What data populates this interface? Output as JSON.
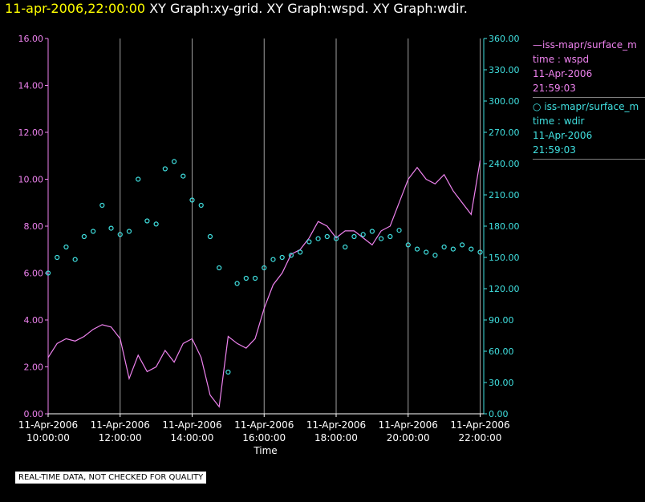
{
  "header": {
    "timestamp": "11-apr-2006,22:00:00",
    "graphs": "XY Graph:xy-grid.  XY Graph:wspd.  XY Graph:wdir."
  },
  "legend": {
    "series1": {
      "name": "iss-mapr/surface_m",
      "pair": "time : wspd",
      "date": "11-Apr-2006",
      "time": "21:59:03"
    },
    "series2": {
      "name": "iss-mapr/surface_m",
      "pair": "time : wdir",
      "date": "11-Apr-2006",
      "time": "21:59:03"
    }
  },
  "footer": {
    "qc_note": "REAL-TIME DATA, NOT CHECKED FOR QUALITY"
  },
  "colors": {
    "wspd": "#ee82ee",
    "wdir": "#40e0e0",
    "grid": "#a0a0a0",
    "header_ts": "#ffff00"
  },
  "chart_data": {
    "type": "line",
    "xlabel": "Time",
    "x_range_hours": [
      10.0,
      22.1
    ],
    "x_ticks": [
      {
        "hour": 10,
        "date": "11-Apr-2006",
        "time": "10:00:00"
      },
      {
        "hour": 12,
        "date": "11-Apr-2006",
        "time": "12:00:00"
      },
      {
        "hour": 14,
        "date": "11-Apr-2006",
        "time": "14:00:00"
      },
      {
        "hour": 16,
        "date": "11-Apr-2006",
        "time": "16:00:00"
      },
      {
        "hour": 18,
        "date": "11-Apr-2006",
        "time": "18:00:00"
      },
      {
        "hour": 20,
        "date": "11-Apr-2006",
        "time": "20:00:00"
      },
      {
        "hour": 22,
        "date": "11-Apr-2006",
        "time": "22:00:00"
      }
    ],
    "grid_x_hours": [
      12,
      14,
      16,
      18,
      20,
      22
    ],
    "left_axis": {
      "series": "wspd",
      "ylim": [
        0,
        16
      ],
      "ticks": [
        "0.00",
        "2.00",
        "4.00",
        "6.00",
        "8.00",
        "10.00",
        "12.00",
        "14.00",
        "16.00"
      ]
    },
    "right_axis": {
      "series": "wdir",
      "ylim": [
        0,
        360
      ],
      "ticks": [
        "0.00",
        "30.00",
        "60.00",
        "90.00",
        "120.00",
        "150.00",
        "180.00",
        "210.00",
        "240.00",
        "270.00",
        "300.00",
        "330.00",
        "360.00"
      ]
    },
    "series": [
      {
        "name": "wspd",
        "style": "line",
        "x": [
          10.0,
          10.25,
          10.5,
          10.75,
          11.0,
          11.25,
          11.5,
          11.75,
          12.0,
          12.25,
          12.5,
          12.75,
          13.0,
          13.25,
          13.5,
          13.75,
          14.0,
          14.25,
          14.5,
          14.75,
          15.0,
          15.25,
          15.5,
          15.75,
          16.0,
          16.25,
          16.5,
          16.75,
          17.0,
          17.25,
          17.5,
          17.75,
          18.0,
          18.25,
          18.5,
          18.75,
          19.0,
          19.25,
          19.5,
          19.75,
          20.0,
          20.25,
          20.5,
          20.75,
          21.0,
          21.25,
          21.5,
          21.75,
          22.0
        ],
        "values": [
          2.4,
          3.0,
          3.2,
          3.1,
          3.3,
          3.6,
          3.8,
          3.7,
          3.2,
          1.5,
          2.5,
          1.8,
          2.0,
          2.7,
          2.2,
          3.0,
          3.2,
          2.4,
          0.8,
          0.3,
          3.3,
          3.0,
          2.8,
          3.2,
          4.5,
          5.5,
          6.0,
          6.8,
          7.0,
          7.5,
          8.2,
          8.0,
          7.5,
          7.8,
          7.8,
          7.5,
          7.2,
          7.8,
          8.0,
          9.0,
          10.0,
          10.5,
          10.0,
          9.8,
          10.2,
          9.5,
          9.0,
          8.5,
          10.8
        ]
      },
      {
        "name": "wdir",
        "style": "scatter",
        "x": [
          10.0,
          10.25,
          10.5,
          10.75,
          11.0,
          11.25,
          11.5,
          11.75,
          12.0,
          12.25,
          12.5,
          12.75,
          13.0,
          13.25,
          13.5,
          13.75,
          14.0,
          14.25,
          14.5,
          14.75,
          15.0,
          15.25,
          15.5,
          15.75,
          16.0,
          16.25,
          16.5,
          16.75,
          17.0,
          17.25,
          17.5,
          17.75,
          18.0,
          18.25,
          18.5,
          18.75,
          19.0,
          19.25,
          19.5,
          19.75,
          20.0,
          20.25,
          20.5,
          20.75,
          21.0,
          21.25,
          21.5,
          21.75,
          22.0
        ],
        "values": [
          135,
          150,
          160,
          148,
          170,
          175,
          200,
          178,
          172,
          175,
          225,
          185,
          182,
          235,
          242,
          228,
          205,
          200,
          170,
          140,
          40,
          125,
          130,
          130,
          140,
          148,
          150,
          152,
          155,
          165,
          168,
          170,
          168,
          160,
          170,
          172,
          175,
          168,
          170,
          176,
          162,
          158,
          155,
          152,
          160,
          158,
          162,
          158,
          155
        ]
      }
    ]
  }
}
